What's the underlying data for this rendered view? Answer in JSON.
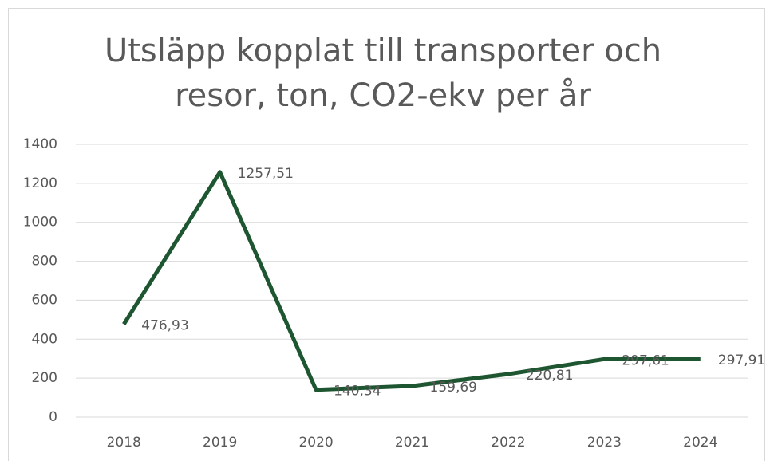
{
  "chart_data": {
    "type": "line",
    "title": "Utsläpp kopplat till transporter och resor, ton, CO2-ekv per år",
    "categories": [
      "2018",
      "2019",
      "2020",
      "2021",
      "2022",
      "2023",
      "2024"
    ],
    "series": [
      {
        "color": "#1e5631",
        "values": [
          476.93,
          1257.51,
          140.34,
          159.69,
          220.81,
          297.61,
          297.91
        ],
        "value_labels": [
          "476,93",
          "1257,51",
          "140,34",
          "159,69",
          "220,81",
          "297,61",
          "297,91"
        ]
      }
    ],
    "ylim": [
      0,
      1400
    ],
    "yticks": [
      0,
      200,
      400,
      600,
      800,
      1000,
      1200,
      1400
    ],
    "grid": true
  }
}
